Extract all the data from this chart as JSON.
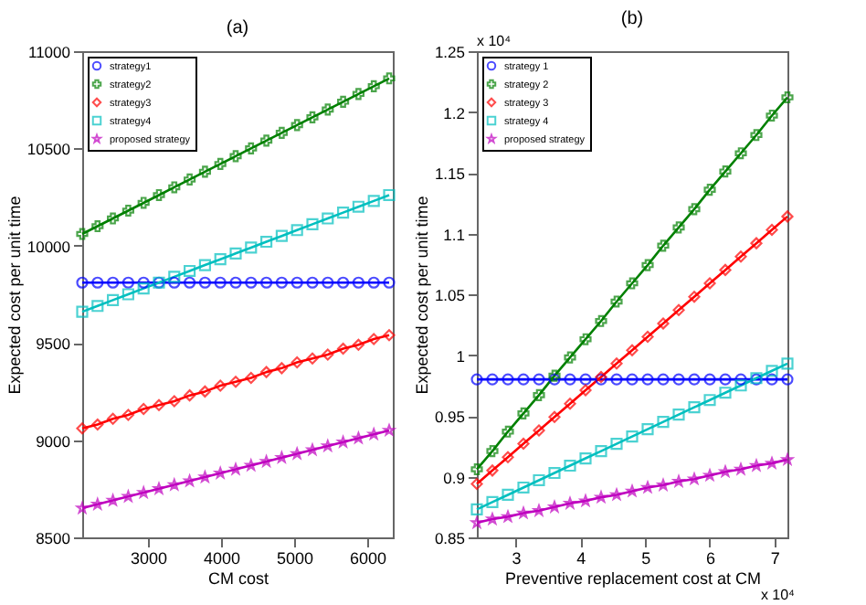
{
  "chart_data": [
    {
      "type": "line",
      "title": "(a)",
      "xlabel": "CM cost",
      "ylabel": "Expected cost per unit time",
      "x": [
        2100,
        2310,
        2520,
        2730,
        2940,
        3150,
        3360,
        3570,
        3780,
        3990,
        4200,
        4410,
        4620,
        4830,
        5040,
        5250,
        5460,
        5670,
        5880,
        6090,
        6300
      ],
      "xlim": [
        2100,
        6350
      ],
      "xticks": [
        3000,
        4000,
        5000,
        6000
      ],
      "ylim": [
        8500,
        11000
      ],
      "yticks": [
        8500,
        9000,
        9500,
        10000,
        10500,
        11000
      ],
      "legend": "top left",
      "series": [
        {
          "name": "strategy1",
          "color": "#0000ff",
          "marker": "circle",
          "values": [
            9810,
            9810,
            9810,
            9810,
            9810,
            9810,
            9810,
            9810,
            9810,
            9810,
            9810,
            9810,
            9810,
            9810,
            9810,
            9810,
            9810,
            9810,
            9810,
            9810,
            9810
          ]
        },
        {
          "name": "strategy2",
          "color": "#008000",
          "marker": "cross",
          "values": [
            10060,
            10100,
            10140,
            10180,
            10220,
            10260,
            10300,
            10340,
            10380,
            10420,
            10460,
            10500,
            10540,
            10580,
            10620,
            10660,
            10700,
            10740,
            10780,
            10820,
            10860
          ]
        },
        {
          "name": "strategy3",
          "color": "#ff0000",
          "marker": "diamond",
          "values": [
            9060,
            9080,
            9110,
            9130,
            9160,
            9180,
            9200,
            9230,
            9250,
            9280,
            9300,
            9320,
            9350,
            9370,
            9400,
            9420,
            9440,
            9470,
            9490,
            9520,
            9540
          ]
        },
        {
          "name": "strategy4",
          "color": "#00bfbf",
          "marker": "square",
          "values": [
            9660,
            9690,
            9720,
            9750,
            9780,
            9810,
            9840,
            9870,
            9900,
            9930,
            9960,
            9990,
            10020,
            10050,
            10080,
            10110,
            10140,
            10170,
            10200,
            10230,
            10260
          ]
        },
        {
          "name": "proposed strategy",
          "color": "#bf00bf",
          "marker": "star",
          "values": [
            8650,
            8670,
            8690,
            8710,
            8730,
            8750,
            8770,
            8790,
            8810,
            8830,
            8850,
            8870,
            8890,
            8910,
            8930,
            8950,
            8970,
            8990,
            9010,
            9030,
            9050
          ]
        }
      ]
    },
    {
      "type": "line",
      "title": "(b)",
      "xlabel": "Preventive replacement cost at CM",
      "ylabel": "Expected cost per unit time",
      "annotations": [
        "x 10⁴",
        "x 10⁴"
      ],
      "x": [
        2.4,
        2.64,
        2.88,
        3.12,
        3.36,
        3.6,
        3.84,
        4.08,
        4.32,
        4.56,
        4.8,
        5.04,
        5.28,
        5.52,
        5.76,
        6,
        6.24,
        6.48,
        6.72,
        6.96,
        7.2
      ],
      "xlim": [
        2.4,
        7.2
      ],
      "xticks": [
        3,
        4,
        5,
        6,
        7
      ],
      "ylim": [
        0.85,
        1.25
      ],
      "yticks": [
        0.85,
        0.9,
        0.95,
        1,
        1.05,
        1.1,
        1.15,
        1.2,
        1.25
      ],
      "legend": "top left",
      "series": [
        {
          "name": "strategy 1",
          "color": "#0000ff",
          "marker": "circle",
          "values": [
            0.98,
            0.98,
            0.98,
            0.98,
            0.98,
            0.98,
            0.98,
            0.98,
            0.98,
            0.98,
            0.98,
            0.98,
            0.98,
            0.98,
            0.98,
            0.98,
            0.98,
            0.98,
            0.98,
            0.98,
            0.98
          ]
        },
        {
          "name": "strategy 2",
          "color": "#008000",
          "marker": "cross",
          "values": [
            0.906,
            0.921,
            0.937,
            0.952,
            0.967,
            0.983,
            0.998,
            1.013,
            1.028,
            1.044,
            1.059,
            1.074,
            1.09,
            1.105,
            1.12,
            1.136,
            1.151,
            1.166,
            1.181,
            1.197,
            1.212
          ]
        },
        {
          "name": "strategy 3",
          "color": "#ff0000",
          "marker": "diamond",
          "values": [
            0.894,
            0.905,
            0.916,
            0.927,
            0.938,
            0.949,
            0.96,
            0.971,
            0.982,
            0.993,
            1.004,
            1.015,
            1.026,
            1.037,
            1.048,
            1.059,
            1.07,
            1.081,
            1.092,
            1.103,
            1.114
          ]
        },
        {
          "name": "strategy 4",
          "color": "#00bfbf",
          "marker": "square",
          "values": [
            0.873,
            0.879,
            0.885,
            0.891,
            0.897,
            0.903,
            0.909,
            0.915,
            0.921,
            0.927,
            0.933,
            0.939,
            0.945,
            0.951,
            0.957,
            0.963,
            0.969,
            0.975,
            0.981,
            0.987,
            0.993
          ]
        },
        {
          "name": "proposed strategy",
          "color": "#bf00bf",
          "marker": "star",
          "values": [
            0.862,
            0.865,
            0.867,
            0.87,
            0.872,
            0.875,
            0.878,
            0.88,
            0.883,
            0.885,
            0.888,
            0.891,
            0.893,
            0.896,
            0.898,
            0.901,
            0.904,
            0.906,
            0.909,
            0.911,
            0.914
          ]
        }
      ]
    }
  ]
}
